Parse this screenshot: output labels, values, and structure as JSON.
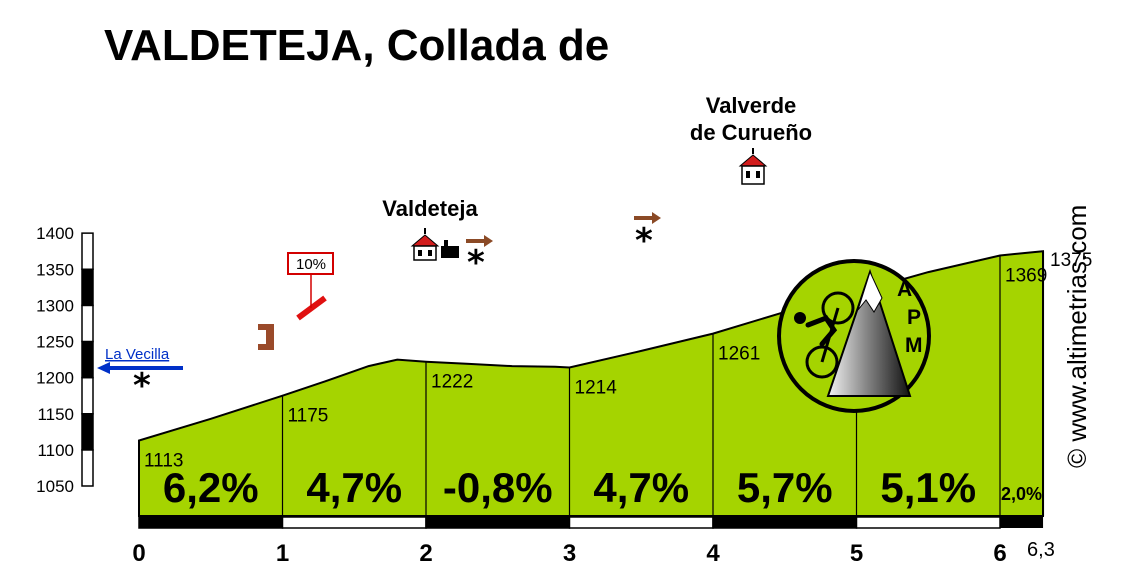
{
  "chart_data": {
    "type": "area",
    "title": "VALDETEJA, Collada de",
    "xlabel": "",
    "ylabel": "",
    "xlim": [
      0,
      6.3
    ],
    "ylim": [
      1050,
      1400
    ],
    "yticks": [
      1050,
      1100,
      1150,
      1200,
      1250,
      1300,
      1350,
      1400
    ],
    "xticks": [
      "0",
      "1",
      "2",
      "3",
      "4",
      "5",
      "6"
    ],
    "x_end_label": "6,3",
    "profile_x": [
      0,
      0.5,
      1,
      1.3,
      1.6,
      1.8,
      2.0,
      2.3,
      2.6,
      2.9,
      3.0,
      3.5,
      4.0,
      4.5,
      5.0,
      5.5,
      6.0,
      6.2,
      6.3
    ],
    "profile_y": [
      1113,
      1143,
      1175,
      1195,
      1216,
      1225,
      1222,
      1219,
      1216,
      1215,
      1214,
      1237,
      1261,
      1291,
      1318,
      1346,
      1369,
      1373,
      1375
    ],
    "km_markers": [
      {
        "km": 0,
        "altitude": "1113"
      },
      {
        "km": 1,
        "altitude": "1175"
      },
      {
        "km": 2,
        "altitude": "1222"
      },
      {
        "km": 3,
        "altitude": "1214"
      },
      {
        "km": 4,
        "altitude": "1261"
      },
      {
        "km": 5,
        "altitude": "1318"
      },
      {
        "km": 6,
        "altitude": "1369"
      }
    ],
    "end_altitude": "1375",
    "gradients": [
      {
        "from": 0,
        "to": 1,
        "label": "6,2%"
      },
      {
        "from": 1,
        "to": 2,
        "label": "4,7%"
      },
      {
        "from": 2,
        "to": 3,
        "label": "-0,8%"
      },
      {
        "from": 3,
        "to": 4,
        "label": "4,7%"
      },
      {
        "from": 4,
        "to": 5,
        "label": "5,7%"
      },
      {
        "from": 5,
        "to": 6,
        "label": "5,1%"
      },
      {
        "from": 6,
        "to": 6.3,
        "label": "2,0%"
      }
    ],
    "max_slope_label": "10%",
    "colors": {
      "fill": "#a5d400",
      "accent": "#d20000",
      "direction": "#0030c8",
      "arrow": "#8b4a26",
      "brick": "#9a4a2a"
    }
  },
  "places": [
    {
      "name": "Valdeteja"
    },
    {
      "line1": "Valverde",
      "line2": "de Curueño"
    }
  ],
  "direction_label": "La Vecilla",
  "logo_letters": [
    "A",
    "P",
    "M"
  ],
  "copyright": "© www.altimetrias.com"
}
